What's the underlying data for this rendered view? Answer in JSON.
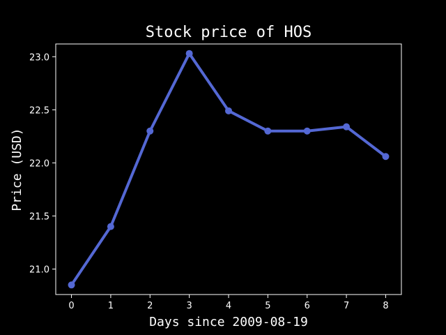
{
  "chart_data": {
    "type": "line",
    "title": "Stock price of HOS",
    "xlabel": "Days since 2009-08-19",
    "ylabel": "Price (USD)",
    "x": [
      0,
      1,
      2,
      3,
      4,
      5,
      6,
      7,
      8
    ],
    "series": [
      {
        "values": [
          20.85,
          21.4,
          22.3,
          23.03,
          22.49,
          22.3,
          22.3,
          22.34,
          22.06
        ],
        "color": "#5468d4"
      }
    ],
    "xticks": [
      "0",
      "1",
      "2",
      "3",
      "4",
      "5",
      "6",
      "7",
      "8"
    ],
    "yticks": [
      "21.0",
      "21.5",
      "22.0",
      "22.5",
      "23.0"
    ],
    "xlim": [
      -0.4,
      8.4
    ],
    "ylim": [
      20.76,
      23.12
    ],
    "grid": false,
    "background": "#000000",
    "axis_color": "#ffffff"
  }
}
